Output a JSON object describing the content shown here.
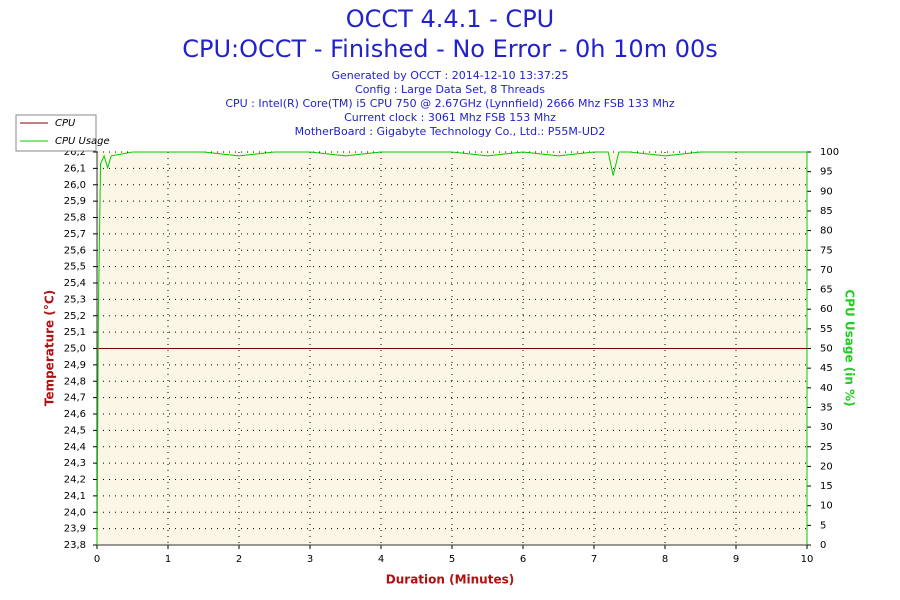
{
  "chart_data": {
    "type": "line",
    "title": "OCCT 4.4.1 - CPU",
    "subtitle": "CPU:OCCT - Finished - No Error - 0h 10m 00s",
    "info_lines": [
      "Generated by OCCT : 2014-12-10 13:37:25",
      "Config : Large Data Set, 8 Threads",
      "CPU : Intel(R) Core(TM) i5 CPU 750 @ 2.67GHz (Lynnfield) 2666 Mhz FSB 133 Mhz",
      "Current clock : 3061 Mhz FSB 153 Mhz",
      "MotherBoard : Gigabyte Technology Co., Ltd.: P55M-UD2"
    ],
    "xlabel": "Duration (Minutes)",
    "ylabel": "Temperature (°C)",
    "y2label": "CPU Usage (in %)",
    "x": [
      0,
      0.02,
      0.05,
      0.1,
      0.15,
      0.2,
      0.5,
      1,
      1.5,
      2,
      2.5,
      3,
      3.5,
      4,
      4.5,
      5,
      5.5,
      6,
      6.5,
      7,
      7.2,
      7.27,
      7.35,
      7.5,
      8,
      8.5,
      9,
      9.5,
      10
    ],
    "series": [
      {
        "name": "CPU",
        "color": "#800000",
        "values": [
          25,
          25,
          25,
          25,
          25,
          25,
          25,
          25,
          25,
          25,
          25,
          25,
          25,
          25,
          25,
          25,
          25,
          25,
          25,
          25,
          25,
          25,
          25,
          25,
          25,
          25,
          25,
          25,
          25
        ]
      },
      {
        "name": "CPU Usage",
        "color": "#00cc00",
        "axis": "y2",
        "values": [
          0,
          60,
          97,
          99,
          96,
          99,
          100,
          100,
          100,
          99,
          100,
          100,
          99,
          100,
          100,
          100,
          99,
          100,
          99,
          100,
          100,
          94,
          100,
          100,
          99,
          100,
          100,
          100,
          100
        ]
      }
    ],
    "xlim": [
      0,
      10
    ],
    "xticks": [
      0,
      1,
      2,
      3,
      4,
      5,
      6,
      7,
      8,
      9,
      10
    ],
    "ylim": [
      23.8,
      26.2
    ],
    "yticks": [
      {
        "value": 23.8,
        "label": "23,8"
      },
      {
        "value": 23.9,
        "label": "23,9"
      },
      {
        "value": 24,
        "label": "24,0"
      },
      {
        "value": 24.1,
        "label": "24,1"
      },
      {
        "value": 24.2,
        "label": "24,2"
      },
      {
        "value": 24.3,
        "label": "24,3"
      },
      {
        "value": 24.4,
        "label": "24,4"
      },
      {
        "value": 24.5,
        "label": "24,5"
      },
      {
        "value": 24.6,
        "label": "24,6"
      },
      {
        "value": 24.7,
        "label": "24,7"
      },
      {
        "value": 24.8,
        "label": "24,8"
      },
      {
        "value": 24.9,
        "label": "24,9"
      },
      {
        "value": 25,
        "label": "25,0"
      },
      {
        "value": 25.1,
        "label": "25,1"
      },
      {
        "value": 25.2,
        "label": "25,2"
      },
      {
        "value": 25.3,
        "label": "25,3"
      },
      {
        "value": 25.4,
        "label": "25,4"
      },
      {
        "value": 25.5,
        "label": "25,5"
      },
      {
        "value": 25.6,
        "label": "25,6"
      },
      {
        "value": 25.7,
        "label": "25,7"
      },
      {
        "value": 25.8,
        "label": "25,8"
      },
      {
        "value": 25.9,
        "label": "25,9"
      },
      {
        "value": 26,
        "label": "26,0"
      },
      {
        "value": 26.1,
        "label": "26,1"
      },
      {
        "value": 26.2,
        "label": "26,2"
      }
    ],
    "y2lim": [
      0,
      100
    ],
    "y2ticks": [
      0,
      5,
      10,
      15,
      20,
      25,
      30,
      35,
      40,
      45,
      50,
      55,
      60,
      65,
      70,
      75,
      80,
      85,
      90,
      95,
      100
    ],
    "grid": true,
    "legend": "upper left"
  }
}
